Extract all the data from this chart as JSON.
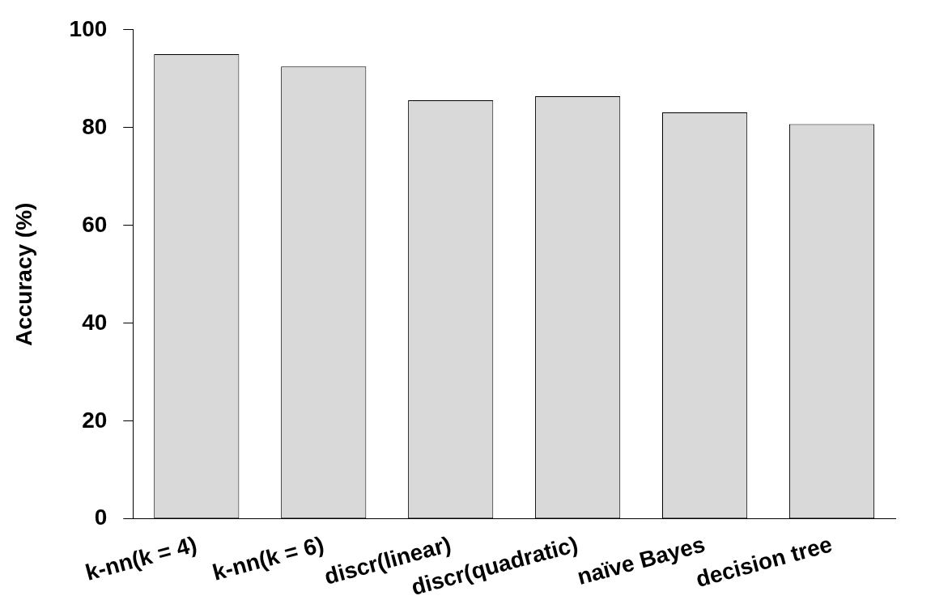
{
  "chart_data": {
    "type": "bar",
    "ylabel": "Accuracy (%)",
    "categories": [
      "k-nn(k = 4)",
      "k-nn(k = 6)",
      "discr(linear)",
      "discr(quadratic)",
      "naïve Bayes",
      "decision tree"
    ],
    "values": [
      95.0,
      92.5,
      85.6,
      86.4,
      83.1,
      80.7
    ],
    "color": "#d9d9d9",
    "ylim": [
      0,
      100
    ],
    "yticks": [
      0,
      20,
      40,
      60,
      80,
      100
    ],
    "grid": false,
    "legend": false
  }
}
